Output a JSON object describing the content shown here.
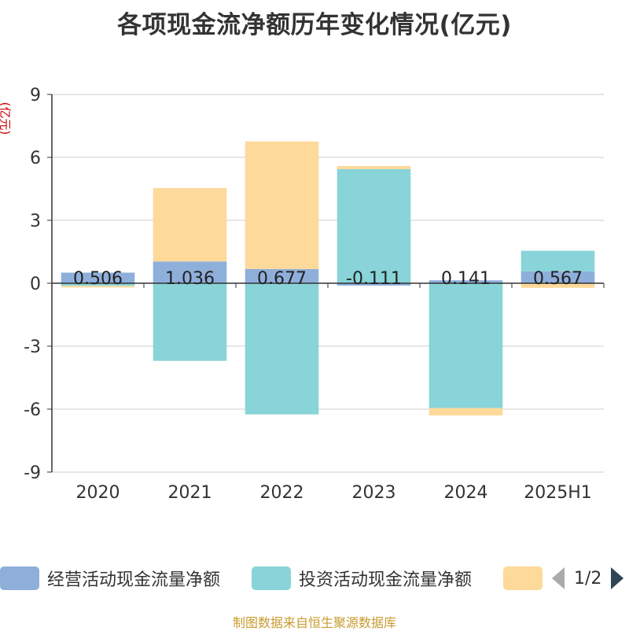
{
  "title": "各项现金流净额历年变化情况(亿元)",
  "source": "制图数据来自恒生聚源数据库",
  "legend_page": "1/2",
  "chart_data": {
    "type": "bar",
    "stacked": true,
    "title": "各项现金流净额历年变化情况(亿元)",
    "ylabel": "(亿元)",
    "xlabel": "",
    "ylim": [
      -9,
      9
    ],
    "yticks": [
      9,
      6,
      3,
      0,
      -3,
      -6,
      -9
    ],
    "grid": true,
    "legend_position": "bottom",
    "categories": [
      "2020",
      "2021",
      "2022",
      "2023",
      "2024",
      "2025H1"
    ],
    "data_labels": [
      "0.506",
      "1.036",
      "0.677",
      "-0.111",
      "0.141",
      "0.567"
    ],
    "series": [
      {
        "name": "经营活动现金流量净额",
        "color": "#8fafdb",
        "values": [
          0.506,
          1.036,
          0.677,
          -0.111,
          0.141,
          0.567
        ]
      },
      {
        "name": "投资活动现金流量净额",
        "color": "#88d4d8",
        "values": [
          -0.12,
          -3.7,
          -6.25,
          5.44,
          -5.95,
          0.98
        ]
      },
      {
        "name": "",
        "color": "#fdd99a",
        "values": [
          -0.08,
          3.5,
          6.08,
          0.15,
          -0.35,
          -0.22
        ]
      }
    ]
  }
}
